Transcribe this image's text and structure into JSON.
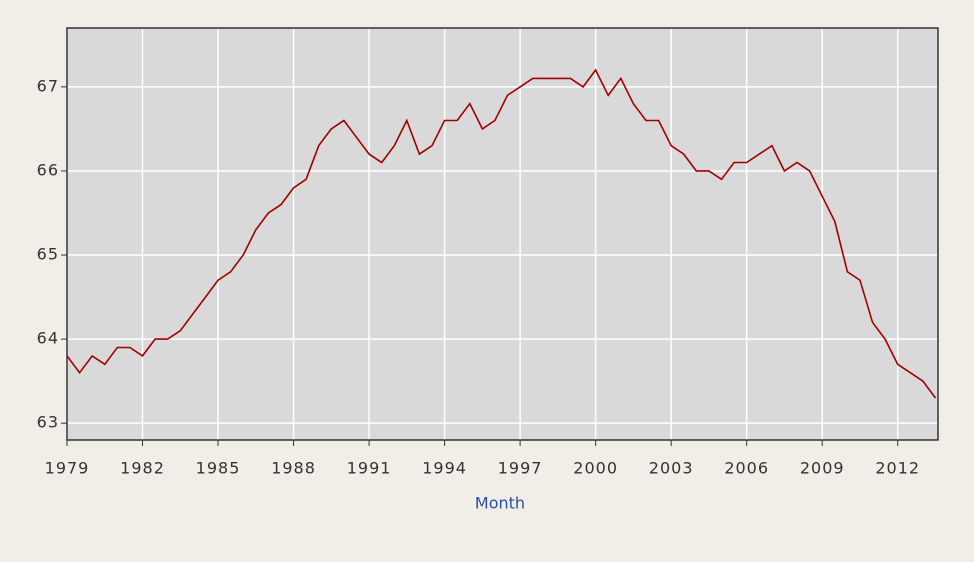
{
  "chart_data": {
    "type": "line",
    "x_label": "Month",
    "x": [
      1979,
      1979.5,
      1980,
      1980.5,
      1981,
      1981.5,
      1982,
      1982.5,
      1983,
      1983.5,
      1984,
      1984.5,
      1985,
      1985.5,
      1986,
      1986.5,
      1987,
      1987.5,
      1988,
      1988.5,
      1989,
      1989.5,
      1990,
      1990.5,
      1991,
      1991.5,
      1992,
      1992.5,
      1993,
      1993.5,
      1994,
      1994.5,
      1995,
      1995.5,
      1996,
      1996.5,
      1997,
      1997.5,
      1998,
      1998.5,
      1999,
      1999.5,
      2000,
      2000.5,
      2001,
      2001.5,
      2002,
      2002.5,
      2003,
      2003.5,
      2004,
      2004.5,
      2005,
      2005.5,
      2006,
      2006.5,
      2007,
      2007.5,
      2008,
      2008.5,
      2009,
      2009.5,
      2010,
      2010.5,
      2011,
      2011.5,
      2012,
      2012.5,
      2013,
      2013.5
    ],
    "series": [
      {
        "color": "#a00000",
        "values": [
          63.8,
          63.6,
          63.8,
          63.7,
          63.9,
          63.9,
          63.8,
          64.0,
          64.0,
          64.1,
          64.3,
          64.5,
          64.7,
          64.8,
          65.0,
          65.3,
          65.5,
          65.6,
          65.8,
          65.9,
          66.3,
          66.5,
          66.6,
          66.4,
          66.2,
          66.1,
          66.3,
          66.6,
          66.2,
          66.3,
          66.6,
          66.6,
          66.8,
          66.5,
          66.6,
          66.9,
          67.0,
          67.1,
          67.1,
          67.1,
          67.1,
          67.0,
          67.2,
          66.9,
          67.1,
          66.8,
          66.6,
          66.6,
          66.3,
          66.2,
          66.0,
          66.0,
          65.9,
          66.1,
          66.1,
          66.2,
          66.3,
          66.0,
          66.1,
          66.0,
          65.7,
          65.4,
          64.8,
          64.7,
          64.2,
          64.0,
          63.7,
          63.6,
          63.5,
          63.3
        ]
      }
    ],
    "xlim": [
      1979,
      2013.6
    ],
    "xticks": [
      1979,
      1982,
      1985,
      1988,
      1991,
      1994,
      1997,
      2000,
      2003,
      2006,
      2009,
      2012
    ],
    "ylim": [
      62.8,
      67.7
    ],
    "yticks": [
      63,
      64,
      65,
      66,
      67
    ],
    "grid": true
  }
}
